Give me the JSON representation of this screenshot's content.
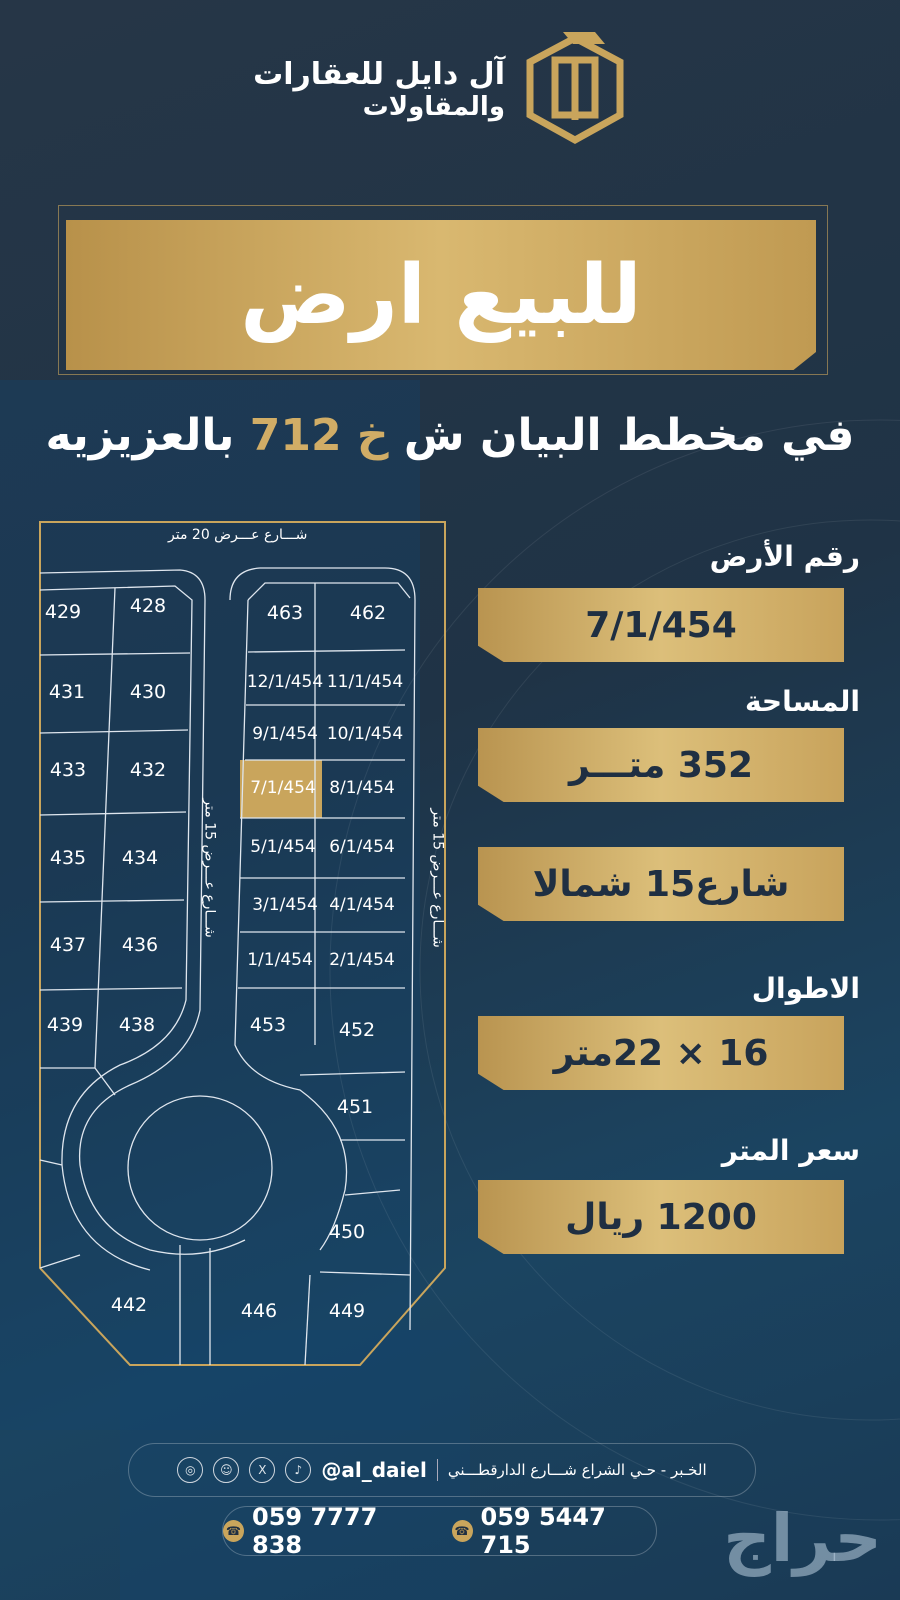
{
  "brand": {
    "name_line1": "آل دايل للعقارات",
    "name_line2": "والمقاولات",
    "logo_color": "#c9a55c"
  },
  "headline": "للبيع ارض",
  "subtitle": {
    "before": "في مخطط البيان ش ",
    "highlight": "خ 712",
    "after": " بالعزيزيه"
  },
  "details": [
    {
      "label": "رقم الأرض",
      "value": "7/1/454"
    },
    {
      "label": "المساحة",
      "value": "352 متـــر"
    },
    {
      "label": "",
      "value": "شارع15 شمالا"
    },
    {
      "label": "الاطوال",
      "value": "16 × 22متر"
    },
    {
      "label": "سعر المتر",
      "value": "1200 ريال"
    }
  ],
  "map": {
    "streets": {
      "top": "شـــارع عـــرض 20 متر",
      "left": "شـــارع عـــرض 15 متر",
      "right": "شـــارع عـــرض 15 متر"
    },
    "highlighted_plot": "7/1/454",
    "plots": [
      "429",
      "428",
      "463",
      "462",
      "431",
      "430",
      "12/1/454",
      "11/1/454",
      "433",
      "432",
      "9/1/454",
      "10/1/454",
      "7/1/454",
      "8/1/454",
      "435",
      "434",
      "5/1/454",
      "6/1/454",
      "437",
      "436",
      "3/1/454",
      "4/1/454",
      "439",
      "438",
      "1/1/454",
      "2/1/454",
      "453",
      "452",
      "451",
      "450",
      "442",
      "446",
      "449"
    ]
  },
  "footer": {
    "address": "الخـبر - حـي الشراع شـــارع الدارقطـــني",
    "handle": "@al_daiel",
    "social_icons": [
      "tiktok-icon",
      "x-icon",
      "snapchat-icon",
      "instagram-icon"
    ],
    "phones": [
      "059 7777 838",
      "059 5447 715"
    ]
  },
  "watermark": "حراج",
  "colors": {
    "gold": "#c9a55c",
    "background": "#1f2f42"
  }
}
